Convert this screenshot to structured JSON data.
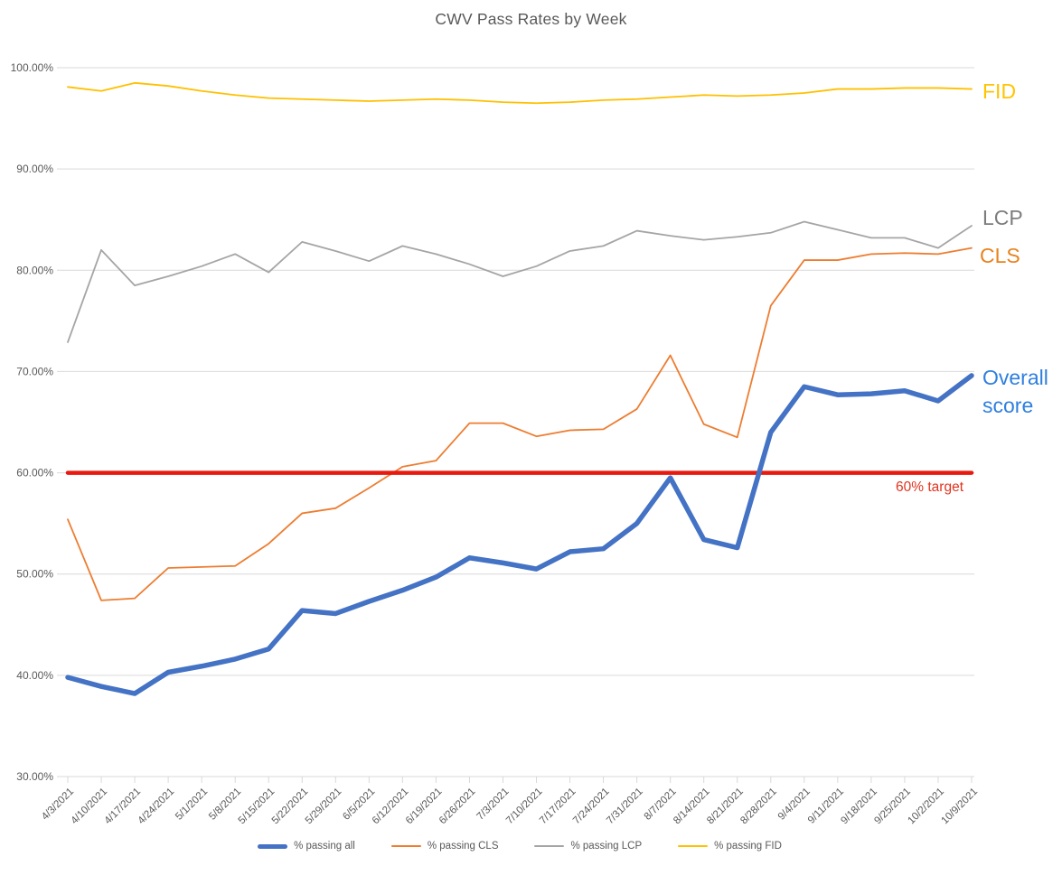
{
  "title": "CWV Pass Rates by Week",
  "annotations": {
    "fid_label": "FID",
    "lcp_label": "LCP",
    "cls_label": "CLS",
    "overall_label": "Overall score",
    "target_label": "60% target",
    "fid_color": "#FFC400",
    "lcp_color": "#7D7D7D",
    "cls_color": "#E8821E",
    "overall_color": "#2E7FDF",
    "target_text_color": "#E2331F"
  },
  "chart_data": {
    "type": "line",
    "title": "CWV Pass Rates by Week",
    "xlabel": "",
    "ylabel": "",
    "ylim": [
      30,
      100
    ],
    "ytick_step": 10,
    "grid": true,
    "legend_position": "bottom",
    "yticks": [
      "100.00%",
      "90.00%",
      "80.00%",
      "70.00%",
      "60.00%",
      "50.00%",
      "40.00%",
      "30.00%"
    ],
    "categories": [
      "4/3/2021",
      "4/10/2021",
      "4/17/2021",
      "4/24/2021",
      "5/1/2021",
      "5/8/2021",
      "5/15/2021",
      "5/22/2021",
      "5/29/2021",
      "6/5/2021",
      "6/12/2021",
      "6/19/2021",
      "6/26/2021",
      "7/3/2021",
      "7/10/2021",
      "7/17/2021",
      "7/24/2021",
      "7/31/2021",
      "8/7/2021",
      "8/14/2021",
      "8/21/2021",
      "8/28/2021",
      "9/4/2021",
      "9/11/2021",
      "9/18/2021",
      "9/25/2021",
      "10/2/2021",
      "10/9/2021"
    ],
    "series": [
      {
        "name": "% passing CLS",
        "color": "#ED7D31",
        "stroke_width": 1.8,
        "values": [
          55.4,
          47.4,
          47.6,
          50.6,
          50.7,
          50.8,
          53.0,
          56.0,
          56.5,
          58.5,
          60.6,
          61.2,
          64.9,
          64.9,
          63.6,
          64.2,
          64.3,
          66.3,
          71.6,
          64.8,
          63.5,
          76.5,
          81.0,
          81.0,
          81.6,
          81.7,
          81.6,
          82.2
        ]
      },
      {
        "name": "% passing LCP",
        "color": "#A5A5A5",
        "stroke_width": 1.8,
        "values": [
          72.9,
          82.0,
          78.5,
          79.4,
          80.4,
          81.6,
          79.8,
          82.8,
          81.9,
          80.9,
          82.4,
          81.6,
          80.6,
          79.4,
          80.4,
          81.9,
          82.4,
          83.9,
          83.4,
          83.0,
          83.3,
          83.7,
          84.8,
          84.0,
          83.2,
          83.2,
          82.2,
          84.4
        ]
      },
      {
        "name": "% passing FID",
        "color": "#FFC000",
        "stroke_width": 1.8,
        "values": [
          98.1,
          97.7,
          98.5,
          98.2,
          97.7,
          97.3,
          97.0,
          96.9,
          96.8,
          96.7,
          96.8,
          96.9,
          96.8,
          96.6,
          96.5,
          96.6,
          96.8,
          96.9,
          97.1,
          97.3,
          97.2,
          97.3,
          97.5,
          97.9,
          97.9,
          98.0,
          98.0,
          97.9
        ]
      },
      {
        "name": "% passing all",
        "color": "#4472C4",
        "stroke_width": 5.5,
        "values": [
          39.8,
          38.9,
          38.2,
          40.3,
          40.9,
          41.6,
          42.6,
          46.4,
          46.1,
          47.3,
          48.4,
          49.7,
          51.6,
          51.1,
          50.5,
          52.2,
          52.5,
          55.0,
          59.5,
          53.4,
          52.6,
          64.0,
          68.5,
          67.7,
          67.8,
          68.1,
          67.1,
          69.6
        ]
      }
    ],
    "legend_order": [
      "% passing all",
      "% passing CLS",
      "% passing LCP",
      "% passing FID"
    ],
    "target_line": {
      "value": 60,
      "label": "60% target",
      "color": "#E8190F",
      "stroke_width": 4.5
    },
    "grid_color": "#D9D9D9",
    "tick_text_color": "#595959"
  }
}
